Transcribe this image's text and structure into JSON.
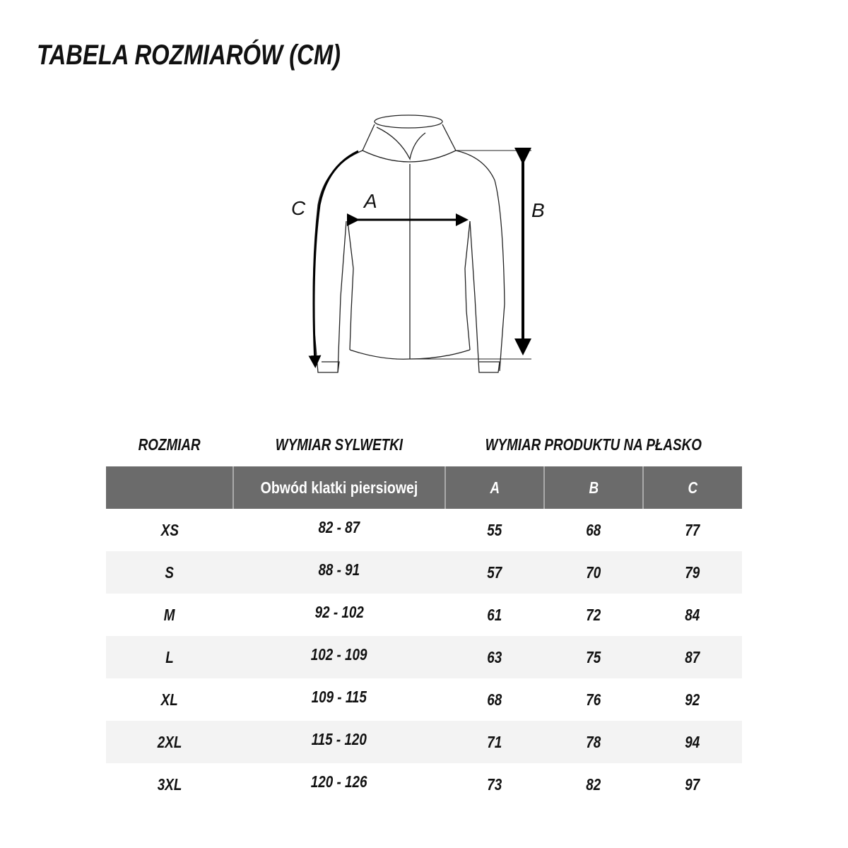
{
  "title": "TABELA ROZMIARÓW (CM)",
  "diagram": {
    "labels": {
      "a": "A",
      "b": "B",
      "c": "C"
    }
  },
  "table": {
    "section_headers": [
      "ROZMIAR",
      "WYMIAR SYLWETKI",
      "WYMIAR PRODUKTU NA PŁASKO"
    ],
    "columns": [
      "",
      "Obwód klatki piersiowej",
      "A",
      "B",
      "C"
    ],
    "rows": [
      [
        "XS",
        "82 - 87",
        "55",
        "68",
        "77"
      ],
      [
        "S",
        "88 - 91",
        "57",
        "70",
        "79"
      ],
      [
        "M",
        "92 - 102",
        "61",
        "72",
        "84"
      ],
      [
        "L",
        "102 - 109",
        "63",
        "75",
        "87"
      ],
      [
        "XL",
        "109 - 115",
        "68",
        "76",
        "92"
      ],
      [
        "2XL",
        "115 - 120",
        "71",
        "78",
        "94"
      ],
      [
        "3XL",
        "120 - 126",
        "73",
        "82",
        "97"
      ]
    ]
  },
  "colors": {
    "header_bg": "#6b6b6b",
    "stripe_bg": "#f3f3f3"
  }
}
